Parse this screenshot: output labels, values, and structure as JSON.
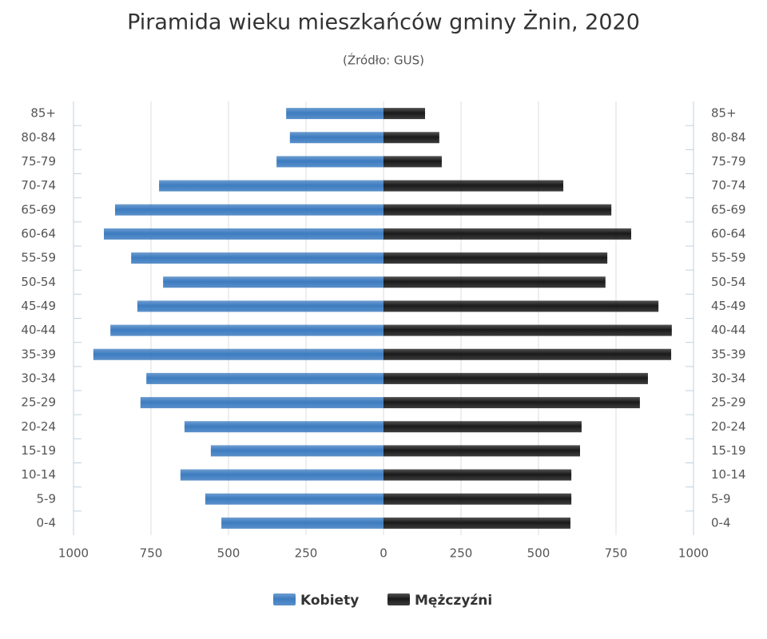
{
  "chart_data": {
    "type": "pyramid",
    "title": "Piramida wieku mieszkańców gminy Żnin, 2020",
    "subtitle": "(Źródło: GUS)",
    "categories": [
      "85+",
      "80-84",
      "75-79",
      "70-74",
      "65-69",
      "60-64",
      "55-59",
      "50-54",
      "45-49",
      "40-44",
      "35-39",
      "30-34",
      "25-29",
      "20-24",
      "15-19",
      "10-14",
      "5-9",
      "0-4"
    ],
    "series": [
      {
        "name": "Kobiety",
        "color": "#3d7cc0",
        "values": [
          -314,
          -302,
          -345,
          -724,
          -866,
          -902,
          -814,
          -711,
          -794,
          -881,
          -936,
          -765,
          -784,
          -642,
          -557,
          -655,
          -575,
          -523
        ]
      },
      {
        "name": "Mężczyźni",
        "color": "#1a1a1a",
        "values": [
          134,
          180,
          188,
          580,
          735,
          799,
          722,
          716,
          887,
          930,
          928,
          853,
          827,
          639,
          634,
          606,
          606,
          603
        ]
      }
    ],
    "xlim": [
      -1000,
      1000
    ],
    "xticks": [
      {
        "value": -1000,
        "label": "1000"
      },
      {
        "value": -750,
        "label": "750"
      },
      {
        "value": -500,
        "label": "500"
      },
      {
        "value": -250,
        "label": "250"
      },
      0,
      250,
      500,
      750,
      1000
    ],
    "grid": true
  }
}
